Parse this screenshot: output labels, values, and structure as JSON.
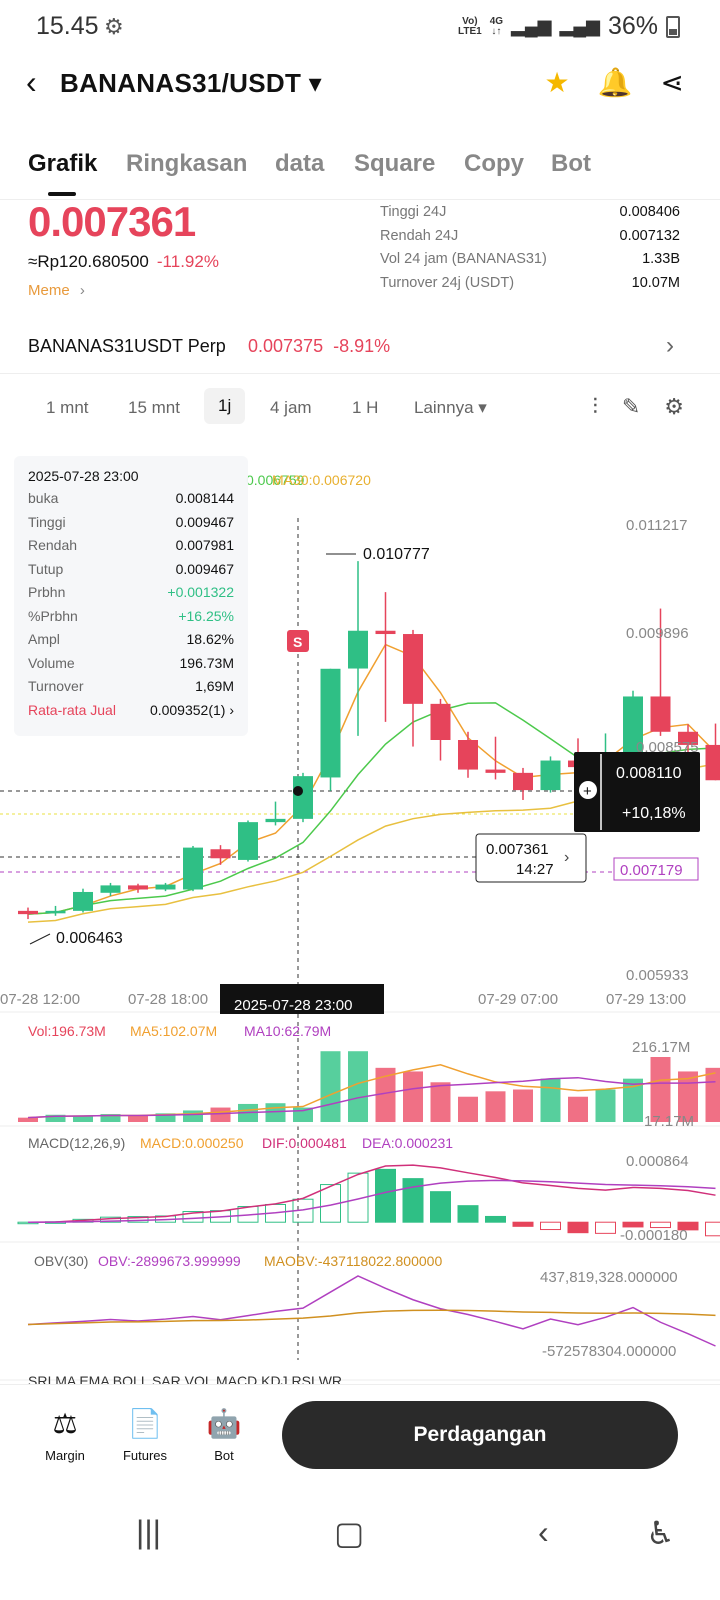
{
  "status": {
    "time": "15.45",
    "net_top": "Vo)",
    "net_bottom": "LTE1",
    "gen": "4G",
    "battery": "36%"
  },
  "header": {
    "pair": "BANANAS31/USDT ▾"
  },
  "tabs": [
    "Grafik",
    "Ringkasan",
    "data",
    "Square",
    "Copy",
    "Bot"
  ],
  "ticker": {
    "price": "0.007361",
    "fiat": "≈Rp120.680500",
    "change": "-11.92%",
    "tag": "Meme",
    "stats": [
      {
        "k": "Tinggi 24J",
        "v": "0.008406"
      },
      {
        "k": "Rendah 24J",
        "v": "0.007132"
      },
      {
        "k": "Vol 24 jam (BANANAS31)",
        "v": "1.33B"
      },
      {
        "k": "Turnover 24j (USDT)",
        "v": "10.07M"
      }
    ]
  },
  "perp": {
    "name": "BANANAS31USDT Perp",
    "price": "0.007375",
    "change": "-8.91%"
  },
  "intervals": [
    "1 mnt",
    "15 mnt",
    "1j",
    "4 jam",
    "1 H",
    "Lainnya ▾"
  ],
  "ohlc": {
    "date": "2025-07-28 23:00",
    "rows": [
      {
        "k": "buka",
        "v": "0.008144"
      },
      {
        "k": "Tinggi",
        "v": "0.009467"
      },
      {
        "k": "Rendah",
        "v": "0.007981"
      },
      {
        "k": "Tutup",
        "v": "0.009467"
      },
      {
        "k": "Prbhn",
        "v": "+0.001322"
      },
      {
        "k": "%Prbhn",
        "v": "+16.25%"
      },
      {
        "k": "Ampl",
        "v": "18.62%"
      },
      {
        "k": "Volume",
        "v": "196.73M"
      },
      {
        "k": "Turnover",
        "v": "1,69M"
      },
      {
        "k": "Rata-rata Jual",
        "v": "0.009352(1) ›"
      }
    ]
  },
  "ma_labels": {
    "ma10": "0.006759",
    "ma30": "MA30:0.006720"
  },
  "chart_data": {
    "type": "candlestick",
    "y_axis_labels": [
      "0.011217",
      "0.009896",
      "0.008575",
      "0.005933"
    ],
    "x_axis_labels": [
      "07-28 12:00",
      "07-28 18:00",
      "07-29 07:00",
      "07-29 13:00"
    ],
    "crosshair_time": "2025-07-28 23:00",
    "high_marker": "0.010777",
    "low_marker": "0.006463",
    "current_price_box": "0.008110",
    "current_change_box": "+10,18%",
    "last_price": "0.007361",
    "countdown": "14:27",
    "purple_price": "0.007179",
    "candles": [
      {
        "o": 0.00652,
        "h": 0.00656,
        "l": 0.00642,
        "c": 0.00648
      },
      {
        "o": 0.00649,
        "h": 0.00658,
        "l": 0.00646,
        "c": 0.00652
      },
      {
        "o": 0.00652,
        "h": 0.00679,
        "l": 0.0065,
        "c": 0.00675
      },
      {
        "o": 0.00674,
        "h": 0.00686,
        "l": 0.0067,
        "c": 0.00683
      },
      {
        "o": 0.00683,
        "h": 0.00685,
        "l": 0.00674,
        "c": 0.00678
      },
      {
        "o": 0.00678,
        "h": 0.00686,
        "l": 0.00676,
        "c": 0.00684
      },
      {
        "o": 0.00678,
        "h": 0.00731,
        "l": 0.00676,
        "c": 0.00729
      },
      {
        "o": 0.00727,
        "h": 0.00732,
        "l": 0.00708,
        "c": 0.00716
      },
      {
        "o": 0.00714,
        "h": 0.00762,
        "l": 0.00712,
        "c": 0.0076
      },
      {
        "o": 0.0076,
        "h": 0.00785,
        "l": 0.00756,
        "c": 0.00764
      },
      {
        "o": 0.00764,
        "h": 0.0082,
        "l": 0.0076,
        "c": 0.00816
      },
      {
        "o": 0.008144,
        "h": 0.009467,
        "l": 0.007981,
        "c": 0.009467
      },
      {
        "o": 0.00947,
        "h": 0.010777,
        "l": 0.00865,
        "c": 0.00993
      },
      {
        "o": 0.00993,
        "h": 0.0104,
        "l": 0.00882,
        "c": 0.00989
      },
      {
        "o": 0.00989,
        "h": 0.00994,
        "l": 0.00852,
        "c": 0.00904
      },
      {
        "o": 0.00904,
        "h": 0.0091,
        "l": 0.00835,
        "c": 0.0086
      },
      {
        "o": 0.0086,
        "h": 0.0087,
        "l": 0.00814,
        "c": 0.00824
      },
      {
        "o": 0.00824,
        "h": 0.00864,
        "l": 0.00812,
        "c": 0.0082
      },
      {
        "o": 0.0082,
        "h": 0.00826,
        "l": 0.00787,
        "c": 0.00799
      },
      {
        "o": 0.00799,
        "h": 0.0084,
        "l": 0.00796,
        "c": 0.00835
      },
      {
        "o": 0.00835,
        "h": 0.00862,
        "l": 0.00818,
        "c": 0.00827
      },
      {
        "o": 0.00827,
        "h": 0.00868,
        "l": 0.0082,
        "c": 0.00842
      },
      {
        "o": 0.00842,
        "h": 0.0092,
        "l": 0.00838,
        "c": 0.00913
      },
      {
        "o": 0.00913,
        "h": 0.0102,
        "l": 0.00865,
        "c": 0.0087
      },
      {
        "o": 0.0087,
        "h": 0.00879,
        "l": 0.0084,
        "c": 0.00854
      },
      {
        "o": 0.00854,
        "h": 0.0088,
        "l": 0.00811,
        "c": 0.00811
      }
    ],
    "vol_labels": {
      "vol": "Vol:196.73M",
      "ma5": "MA5:102.07M",
      "ma10": "MA10:62.79M",
      "max": "216.17M",
      "min": "17.17M"
    },
    "macd_labels": {
      "name": "MACD(12,26,9)",
      "macd": "MACD:0.000250",
      "dif": "DIF:0.000481",
      "dea": "DEA:0.000231",
      "max": "0.000864",
      "min": "-0.000180"
    },
    "obv_labels": {
      "name": "OBV(30)",
      "obv": "OBV:-2899673.999999",
      "maobv": "MAOBV:-437118022.800000",
      "max": "437,819,328.000000",
      "min": "-572578304.000000"
    },
    "volumes": [
      12,
      20,
      18,
      22,
      18,
      24,
      32,
      40,
      50,
      52,
      40,
      196,
      196,
      150,
      140,
      110,
      70,
      85,
      90,
      120,
      70,
      90,
      120,
      180,
      140,
      150
    ]
  },
  "indicator_tabs": "SRI   MA    EMA   BOLL   SAR   VOL   MACD   KDJ   RSI   WR",
  "bottom": {
    "margin": "Margin",
    "futures": "Futures",
    "bot": "Bot",
    "trade": "Perdagangan"
  },
  "colors": {
    "up": "#2fbf85",
    "down": "#e6445b",
    "ma5": "#f0a030",
    "ma10": "#4cc94c",
    "ma30": "#e8c040",
    "purple": "#b040c0"
  }
}
